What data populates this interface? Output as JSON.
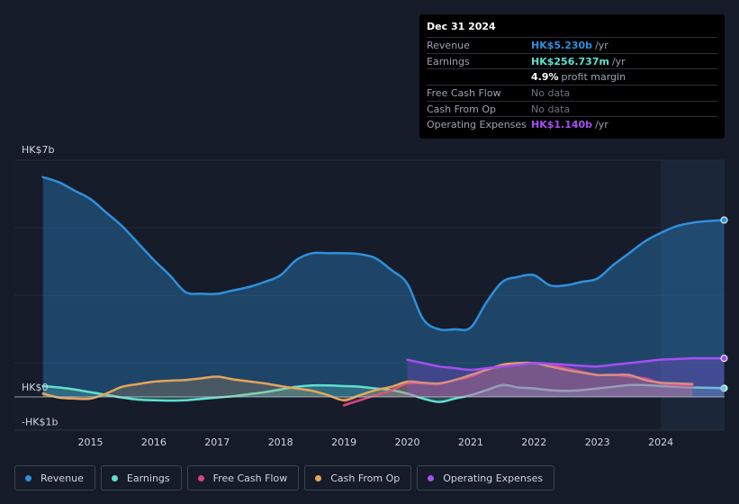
{
  "tooltip": {
    "date": "Dec 31 2024",
    "rows": [
      {
        "label": "Revenue",
        "value": "HK$5.230b",
        "unit": "/yr",
        "color": "#2f8fdc"
      },
      {
        "label": "Earnings",
        "value": "HK$256.737m",
        "unit": "/yr",
        "color": "#5fe0cf"
      },
      {
        "label": "",
        "value": "4.9%",
        "unit": "profit margin"
      },
      {
        "label": "Free Cash Flow",
        "value": "No data"
      },
      {
        "label": "Cash From Op",
        "value": "No data"
      },
      {
        "label": "Operating Expenses",
        "value": "HK$1.140b",
        "unit": "/yr",
        "color": "#a54ff2"
      }
    ]
  },
  "legend": [
    {
      "label": "Revenue",
      "color": "#2f8fdc"
    },
    {
      "label": "Earnings",
      "color": "#5fe0cf"
    },
    {
      "label": "Free Cash Flow",
      "color": "#d6457c"
    },
    {
      "label": "Cash From Op",
      "color": "#e3a55c"
    },
    {
      "label": "Operating Expenses",
      "color": "#a54ff2"
    }
  ],
  "chart_data": {
    "type": "line",
    "title": "",
    "y_unit": "HK$ billions",
    "ylim": [
      -1,
      7
    ],
    "y_tick_labels": [
      {
        "value": 7,
        "label": "HK$7b"
      },
      {
        "value": 0,
        "label": "HK$0"
      },
      {
        "value": -1,
        "label": "-HK$1b"
      }
    ],
    "xlim": [
      2014.3,
      2025.0
    ],
    "x_ticks": [
      2015,
      2016,
      2017,
      2018,
      2019,
      2020,
      2021,
      2022,
      2023,
      2024
    ],
    "highlight_start": 2024.0,
    "series": [
      {
        "name": "Revenue",
        "color": "#2f8fdc",
        "fill": true,
        "end_marker": true,
        "x": [
          2014.25,
          2014.5,
          2014.75,
          2015.0,
          2015.25,
          2015.5,
          2015.75,
          2016.0,
          2016.25,
          2016.5,
          2016.75,
          2017.0,
          2017.25,
          2017.5,
          2017.75,
          2018.0,
          2018.25,
          2018.5,
          2018.75,
          2019.0,
          2019.25,
          2019.5,
          2019.75,
          2020.0,
          2020.25,
          2020.5,
          2020.75,
          2021.0,
          2021.25,
          2021.5,
          2021.75,
          2022.0,
          2022.25,
          2022.5,
          2022.75,
          2023.0,
          2023.25,
          2023.5,
          2023.75,
          2024.0,
          2024.25,
          2024.5,
          2024.75,
          2025.0
        ],
        "values": [
          6.5,
          6.35,
          6.1,
          5.85,
          5.45,
          5.05,
          4.55,
          4.05,
          3.6,
          3.1,
          3.05,
          3.05,
          3.15,
          3.25,
          3.4,
          3.6,
          4.05,
          4.25,
          4.25,
          4.25,
          4.22,
          4.1,
          3.75,
          3.35,
          2.3,
          2.0,
          2.0,
          2.05,
          2.8,
          3.4,
          3.55,
          3.6,
          3.3,
          3.3,
          3.4,
          3.5,
          3.9,
          4.25,
          4.6,
          4.85,
          5.05,
          5.15,
          5.2,
          5.23
        ]
      },
      {
        "name": "Earnings",
        "color": "#5fe0cf",
        "fill": true,
        "end_marker": true,
        "x": [
          2014.25,
          2014.5,
          2014.75,
          2015.0,
          2015.25,
          2015.5,
          2015.75,
          2016.0,
          2016.25,
          2016.5,
          2016.75,
          2017.0,
          2017.25,
          2017.5,
          2017.75,
          2018.0,
          2018.25,
          2018.5,
          2018.75,
          2019.0,
          2019.25,
          2019.5,
          2019.75,
          2020.0,
          2020.25,
          2020.5,
          2020.75,
          2021.0,
          2021.25,
          2021.5,
          2021.75,
          2022.0,
          2022.25,
          2022.5,
          2022.75,
          2023.0,
          2023.25,
          2023.5,
          2023.75,
          2024.0,
          2024.25,
          2024.5,
          2024.75,
          2025.0
        ],
        "values": [
          0.32,
          0.28,
          0.22,
          0.14,
          0.06,
          -0.02,
          -0.08,
          -0.1,
          -0.11,
          -0.1,
          -0.06,
          -0.02,
          0.02,
          0.08,
          0.14,
          0.22,
          0.3,
          0.34,
          0.34,
          0.32,
          0.3,
          0.25,
          0.2,
          0.1,
          -0.05,
          -0.15,
          -0.05,
          0.05,
          0.2,
          0.35,
          0.28,
          0.25,
          0.2,
          0.18,
          0.2,
          0.25,
          0.3,
          0.35,
          0.35,
          0.32,
          0.3,
          0.28,
          0.27,
          0.257
        ]
      },
      {
        "name": "Free Cash Flow",
        "color": "#d6457c",
        "fill": true,
        "end_marker": false,
        "x": [
          2019.0,
          2019.25,
          2019.5,
          2019.75,
          2020.0,
          2020.25,
          2020.5,
          2020.75,
          2021.0,
          2021.25,
          2021.5,
          2021.75,
          2022.0,
          2022.25,
          2022.5,
          2022.75,
          2023.0,
          2023.25,
          2023.5,
          2023.75,
          2024.0,
          2024.25,
          2024.5
        ],
        "values": [
          -0.25,
          -0.1,
          0.05,
          0.2,
          0.4,
          0.4,
          0.38,
          0.5,
          0.6,
          0.8,
          0.9,
          0.95,
          1.0,
          0.95,
          0.85,
          0.75,
          0.65,
          0.65,
          0.6,
          0.55,
          0.4,
          0.35,
          0.32
        ]
      },
      {
        "name": "Cash From Op",
        "color": "#e3a55c",
        "fill": true,
        "end_marker": false,
        "x": [
          2014.25,
          2014.5,
          2014.75,
          2015.0,
          2015.25,
          2015.5,
          2015.75,
          2016.0,
          2016.25,
          2016.5,
          2016.75,
          2017.0,
          2017.25,
          2017.5,
          2017.75,
          2018.0,
          2018.25,
          2018.5,
          2018.75,
          2019.0,
          2019.25,
          2019.5,
          2019.75,
          2020.0,
          2020.25,
          2020.5,
          2020.75,
          2021.0,
          2021.25,
          2021.5,
          2021.75,
          2022.0,
          2022.25,
          2022.5,
          2022.75,
          2023.0,
          2023.25,
          2023.5,
          2023.75,
          2024.0,
          2024.25,
          2024.5
        ],
        "values": [
          0.1,
          -0.02,
          -0.05,
          -0.05,
          0.1,
          0.3,
          0.38,
          0.45,
          0.48,
          0.5,
          0.55,
          0.6,
          0.52,
          0.46,
          0.4,
          0.32,
          0.25,
          0.18,
          0.05,
          -0.1,
          0.05,
          0.2,
          0.3,
          0.45,
          0.42,
          0.4,
          0.5,
          0.65,
          0.8,
          0.95,
          1.0,
          1.0,
          0.9,
          0.8,
          0.72,
          0.65,
          0.65,
          0.65,
          0.5,
          0.42,
          0.4,
          0.38
        ]
      },
      {
        "name": "Operating Expenses",
        "color": "#a54ff2",
        "fill": true,
        "end_marker": true,
        "x": [
          2020.0,
          2020.25,
          2020.5,
          2020.75,
          2021.0,
          2021.25,
          2021.5,
          2021.75,
          2022.0,
          2022.25,
          2022.5,
          2022.75,
          2023.0,
          2023.25,
          2023.5,
          2023.75,
          2024.0,
          2024.25,
          2024.5,
          2024.75,
          2025.0
        ],
        "values": [
          1.1,
          1.0,
          0.9,
          0.85,
          0.8,
          0.85,
          0.9,
          0.95,
          1.0,
          0.98,
          0.95,
          0.92,
          0.9,
          0.95,
          1.0,
          1.05,
          1.1,
          1.12,
          1.14,
          1.14,
          1.14
        ]
      }
    ]
  }
}
